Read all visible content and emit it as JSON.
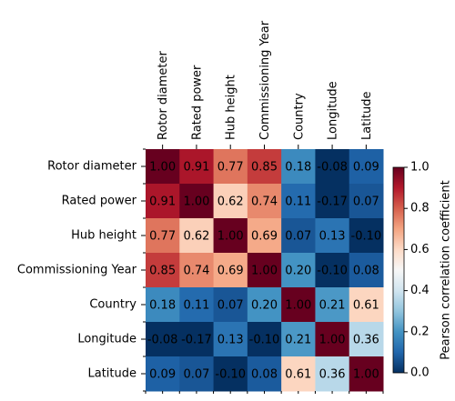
{
  "chart_data": {
    "type": "heatmap",
    "categories": [
      "Rotor diameter",
      "Rated power",
      "Hub height",
      "Commissioning Year",
      "Country",
      "Longitude",
      "Latitude"
    ],
    "values": [
      [
        1.0,
        0.91,
        0.77,
        0.85,
        0.18,
        -0.08,
        0.09
      ],
      [
        0.91,
        1.0,
        0.62,
        0.74,
        0.11,
        -0.17,
        0.07
      ],
      [
        0.77,
        0.62,
        1.0,
        0.69,
        0.07,
        0.13,
        -0.1
      ],
      [
        0.85,
        0.74,
        0.69,
        1.0,
        0.2,
        -0.1,
        0.08
      ],
      [
        0.18,
        0.11,
        0.07,
        0.2,
        1.0,
        0.21,
        0.61
      ],
      [
        -0.08,
        -0.17,
        0.13,
        -0.1,
        0.21,
        1.0,
        0.36
      ],
      [
        0.09,
        0.07,
        -0.1,
        0.08,
        0.61,
        0.36,
        1.0
      ]
    ],
    "value_labels": [
      [
        "1.00",
        "0.91",
        "0.77",
        "0.85",
        "0.18",
        "-0.08",
        "0.09"
      ],
      [
        "0.91",
        "1.00",
        "0.62",
        "0.74",
        "0.11",
        "-0.17",
        "0.07"
      ],
      [
        "0.77",
        "0.62",
        "1.00",
        "0.69",
        "0.07",
        "0.13",
        "-0.10"
      ],
      [
        "0.85",
        "0.74",
        "0.69",
        "1.00",
        "0.20",
        "-0.10",
        "0.08"
      ],
      [
        "0.18",
        "0.11",
        "0.07",
        "0.20",
        "1.00",
        "0.21",
        "0.61"
      ],
      [
        "-0.08",
        "-0.17",
        "0.13",
        "-0.10",
        "0.21",
        "1.00",
        "0.36"
      ],
      [
        "0.09",
        "0.07",
        "-0.10",
        "0.08",
        "0.61",
        "0.36",
        "1.00"
      ]
    ],
    "colormap": "RdBu_r",
    "colorbar": {
      "label": "Pearson correlation coefficient",
      "lim": [
        0,
        1
      ],
      "ticks": [
        {
          "value": 0,
          "label": "0.0"
        },
        0.2,
        0.4,
        0.6,
        0.8,
        {
          "value": 1,
          "label": "1.0"
        }
      ]
    }
  }
}
